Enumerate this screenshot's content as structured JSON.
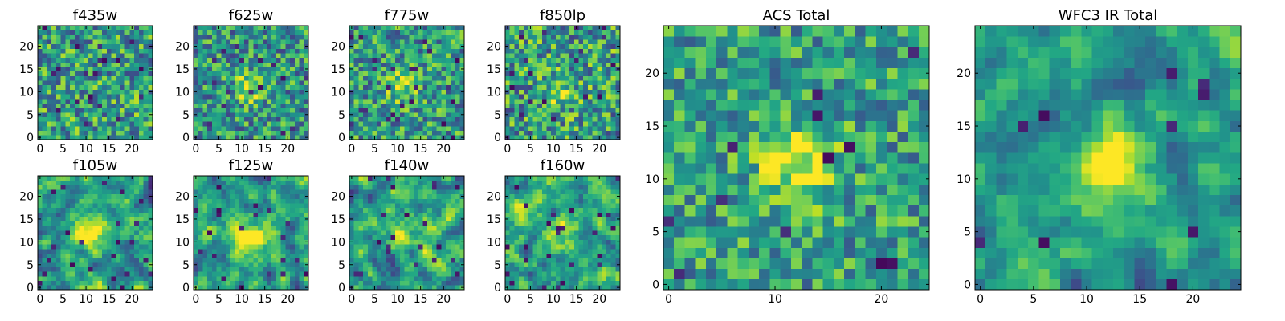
{
  "colormap": {
    "name": "viridis",
    "stops": [
      "#440154",
      "#482475",
      "#414487",
      "#355f8d",
      "#2a788e",
      "#21918c",
      "#22a884",
      "#44bf70",
      "#7ad151",
      "#bddf26",
      "#fde725"
    ]
  },
  "chart_data": [
    {
      "type": "heatmap",
      "title": "f435w",
      "grid_size": 25,
      "xticks": [
        0,
        5,
        10,
        15,
        20
      ],
      "yticks": [
        0,
        5,
        10,
        15,
        20
      ],
      "xlim": [
        0,
        25
      ],
      "ylim": [
        0,
        25
      ],
      "seed": 11,
      "base": 0.56,
      "noise": 0.34,
      "blob": {
        "amp": 0.0,
        "x": 12,
        "y": 11,
        "sigma": 3.0
      },
      "dark_rate": 0.03,
      "smooth": 0
    },
    {
      "type": "heatmap",
      "title": "f625w",
      "grid_size": 25,
      "xticks": [
        0,
        5,
        10,
        15,
        20
      ],
      "yticks": [
        0,
        5,
        10,
        15,
        20
      ],
      "xlim": [
        0,
        25
      ],
      "ylim": [
        0,
        25
      ],
      "seed": 23,
      "base": 0.52,
      "noise": 0.32,
      "blob": {
        "amp": 0.4,
        "x": 12,
        "y": 11,
        "sigma": 2.2
      },
      "dark_rate": 0.03,
      "smooth": 0
    },
    {
      "type": "heatmap",
      "title": "f775w",
      "grid_size": 25,
      "xticks": [
        0,
        5,
        10,
        15,
        20
      ],
      "yticks": [
        0,
        5,
        10,
        15,
        20
      ],
      "xlim": [
        0,
        25
      ],
      "ylim": [
        0,
        25
      ],
      "seed": 37,
      "base": 0.54,
      "noise": 0.32,
      "blob": {
        "amp": 0.35,
        "x": 11,
        "y": 11,
        "sigma": 2.2
      },
      "dark_rate": 0.03,
      "smooth": 0
    },
    {
      "type": "heatmap",
      "title": "f850lp",
      "grid_size": 25,
      "xticks": [
        0,
        5,
        10,
        15,
        20
      ],
      "yticks": [
        0,
        5,
        10,
        15,
        20
      ],
      "xlim": [
        0,
        25
      ],
      "ylim": [
        0,
        25
      ],
      "seed": 41,
      "base": 0.55,
      "noise": 0.36,
      "blob": {
        "amp": 0.25,
        "x": 12,
        "y": 10,
        "sigma": 2.5
      },
      "dark_rate": 0.04,
      "smooth": 0
    },
    {
      "type": "heatmap",
      "title": "f105w",
      "grid_size": 25,
      "xticks": [
        0,
        5,
        10,
        15,
        20
      ],
      "yticks": [
        0,
        5,
        10,
        15,
        20
      ],
      "xlim": [
        0,
        25
      ],
      "ylim": [
        0,
        25
      ],
      "seed": 53,
      "base": 0.55,
      "noise": 0.3,
      "blob": {
        "amp": 0.4,
        "x": 11,
        "y": 12,
        "sigma": 3.0
      },
      "dark_rate": 0.025,
      "smooth": 1
    },
    {
      "type": "heatmap",
      "title": "f125w",
      "grid_size": 25,
      "xticks": [
        0,
        5,
        10,
        15,
        20
      ],
      "yticks": [
        0,
        5,
        10,
        15,
        20
      ],
      "xlim": [
        0,
        25
      ],
      "ylim": [
        0,
        25
      ],
      "seed": 67,
      "base": 0.55,
      "noise": 0.3,
      "blob": {
        "amp": 0.4,
        "x": 12,
        "y": 11,
        "sigma": 3.0
      },
      "dark_rate": 0.025,
      "smooth": 1
    },
    {
      "type": "heatmap",
      "title": "f140w",
      "grid_size": 25,
      "xticks": [
        0,
        5,
        10,
        15,
        20
      ],
      "yticks": [
        0,
        5,
        10,
        15,
        20
      ],
      "xlim": [
        0,
        25
      ],
      "ylim": [
        0,
        25
      ],
      "seed": 79,
      "base": 0.55,
      "noise": 0.32,
      "blob": {
        "amp": 0.3,
        "x": 12,
        "y": 12,
        "sigma": 3.0
      },
      "dark_rate": 0.03,
      "smooth": 1
    },
    {
      "type": "heatmap",
      "title": "f160w",
      "grid_size": 25,
      "xticks": [
        0,
        5,
        10,
        15,
        20
      ],
      "yticks": [
        0,
        5,
        10,
        15,
        20
      ],
      "xlim": [
        0,
        25
      ],
      "ylim": [
        0,
        25
      ],
      "seed": 83,
      "base": 0.55,
      "noise": 0.32,
      "blob": {
        "amp": 0.3,
        "x": 13,
        "y": 12,
        "sigma": 3.0
      },
      "dark_rate": 0.03,
      "smooth": 1
    },
    {
      "type": "heatmap",
      "title": "ACS Total",
      "grid_size": 25,
      "xticks": [
        0,
        10,
        20
      ],
      "yticks": [
        0,
        5,
        10,
        15,
        20
      ],
      "xlim": [
        0,
        25
      ],
      "ylim": [
        0,
        25
      ],
      "seed": 97,
      "base": 0.56,
      "noise": 0.28,
      "blob": {
        "amp": 0.42,
        "x": 12,
        "y": 11.5,
        "sigma": 2.6
      },
      "dark_rate": 0.025,
      "smooth": 0
    },
    {
      "type": "heatmap",
      "title": "WFC3 IR Total",
      "grid_size": 25,
      "xticks": [
        0,
        5,
        10,
        15,
        20
      ],
      "yticks": [
        0,
        5,
        10,
        15,
        20
      ],
      "xlim": [
        0,
        25
      ],
      "ylim": [
        0,
        25
      ],
      "seed": 101,
      "base": 0.56,
      "noise": 0.24,
      "blob": {
        "amp": 0.42,
        "x": 12,
        "y": 11.5,
        "sigma": 2.6
      },
      "dark_rate": 0.025,
      "smooth": 1
    }
  ]
}
